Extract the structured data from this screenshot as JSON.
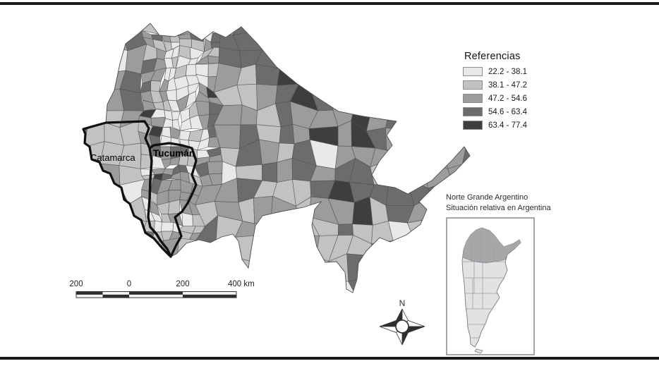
{
  "figure": {
    "kind": "choropleth-map",
    "region": "Norte Grande Argentino"
  },
  "legend": {
    "title": "Referencias",
    "items": [
      {
        "label": "22.2 - 38.1",
        "color": "#e9e9ea"
      },
      {
        "label": "38.1 - 47.2",
        "color": "#c2c2c4"
      },
      {
        "label": "47.2 - 54.6",
        "color": "#9c9c9e"
      },
      {
        "label": "54.6 - 63.4",
        "color": "#6c6c6e"
      },
      {
        "label": "63.4 - 77.4",
        "color": "#3e3e40"
      }
    ]
  },
  "map_labels": {
    "catamarca": "Catamarca",
    "tucuman": "Tucumán"
  },
  "scale_bar": {
    "labels": [
      "200",
      "0",
      "200",
      "400 km"
    ]
  },
  "compass": {
    "north_label": "N"
  },
  "inset": {
    "caption_line1": "Norte Grande Argentino",
    "caption_line2": "Situación relativa en Argentina",
    "highlight_color": "#a7a7aa",
    "country_color": "#e2e2e4"
  },
  "colors": {
    "province_outline": "#101010",
    "department_border": "#4c4d50",
    "frame_rule": "#1a1a1a"
  }
}
